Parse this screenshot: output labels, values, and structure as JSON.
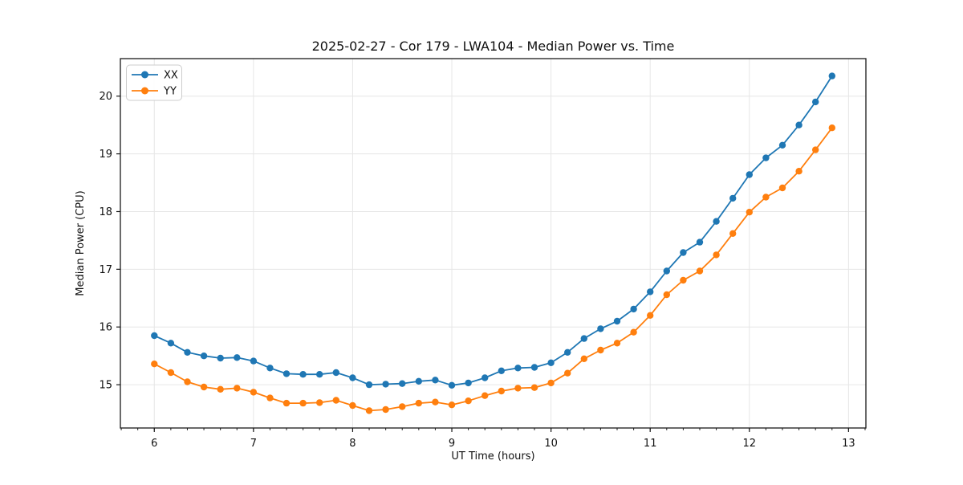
{
  "chart_data": {
    "type": "line",
    "title": "2025-02-27 - Cor 179 - LWA104 - Median Power vs. Time",
    "xlabel": "UT Time (hours)",
    "ylabel": "Median Power (CPU)",
    "xlim": [
      5.658,
      13.175
    ],
    "ylim": [
      14.25,
      20.65
    ],
    "x_ticks": [
      6,
      7,
      8,
      9,
      10,
      11,
      12,
      13
    ],
    "y_ticks": [
      15,
      16,
      17,
      18,
      19,
      20
    ],
    "x_minor_step": 0.166667,
    "grid": "major-both-light-gray",
    "legend_position": "upper-left",
    "marker": "circle",
    "x": [
      6.0,
      6.1667,
      6.3333,
      6.5,
      6.6667,
      6.8333,
      7.0,
      7.1667,
      7.3333,
      7.5,
      7.6667,
      7.8333,
      8.0,
      8.1667,
      8.3333,
      8.5,
      8.6667,
      8.8333,
      9.0,
      9.1667,
      9.3333,
      9.5,
      9.6667,
      9.8333,
      10.0,
      10.1667,
      10.3333,
      10.5,
      10.6667,
      10.8333,
      11.0,
      11.1667,
      11.3333,
      11.5,
      11.6667,
      11.8333,
      12.0,
      12.1667,
      12.3333,
      12.5,
      12.6667,
      12.8333
    ],
    "series": [
      {
        "name": "XX",
        "color": "#1f77b4",
        "values": [
          15.85,
          15.72,
          15.56,
          15.5,
          15.46,
          15.47,
          15.41,
          15.29,
          15.19,
          15.18,
          15.18,
          15.21,
          15.12,
          15.0,
          15.01,
          15.02,
          15.06,
          15.08,
          14.99,
          15.03,
          15.12,
          15.24,
          15.29,
          15.3,
          15.38,
          15.56,
          15.8,
          15.97,
          16.1,
          16.31,
          16.61,
          16.97,
          17.29,
          17.47,
          17.83,
          18.23,
          18.64,
          18.93,
          19.15,
          19.5,
          19.9,
          20.35
        ]
      },
      {
        "name": "YY",
        "color": "#ff7f0e",
        "values": [
          15.36,
          15.21,
          15.05,
          14.96,
          14.92,
          14.94,
          14.87,
          14.77,
          14.68,
          14.68,
          14.69,
          14.73,
          14.64,
          14.55,
          14.57,
          14.62,
          14.68,
          14.7,
          14.65,
          14.72,
          14.81,
          14.89,
          14.94,
          14.95,
          15.03,
          15.2,
          15.45,
          15.6,
          15.72,
          15.91,
          16.2,
          16.56,
          16.81,
          16.97,
          17.25,
          17.62,
          17.99,
          18.25,
          18.41,
          18.7,
          19.07,
          19.45
        ]
      }
    ]
  }
}
